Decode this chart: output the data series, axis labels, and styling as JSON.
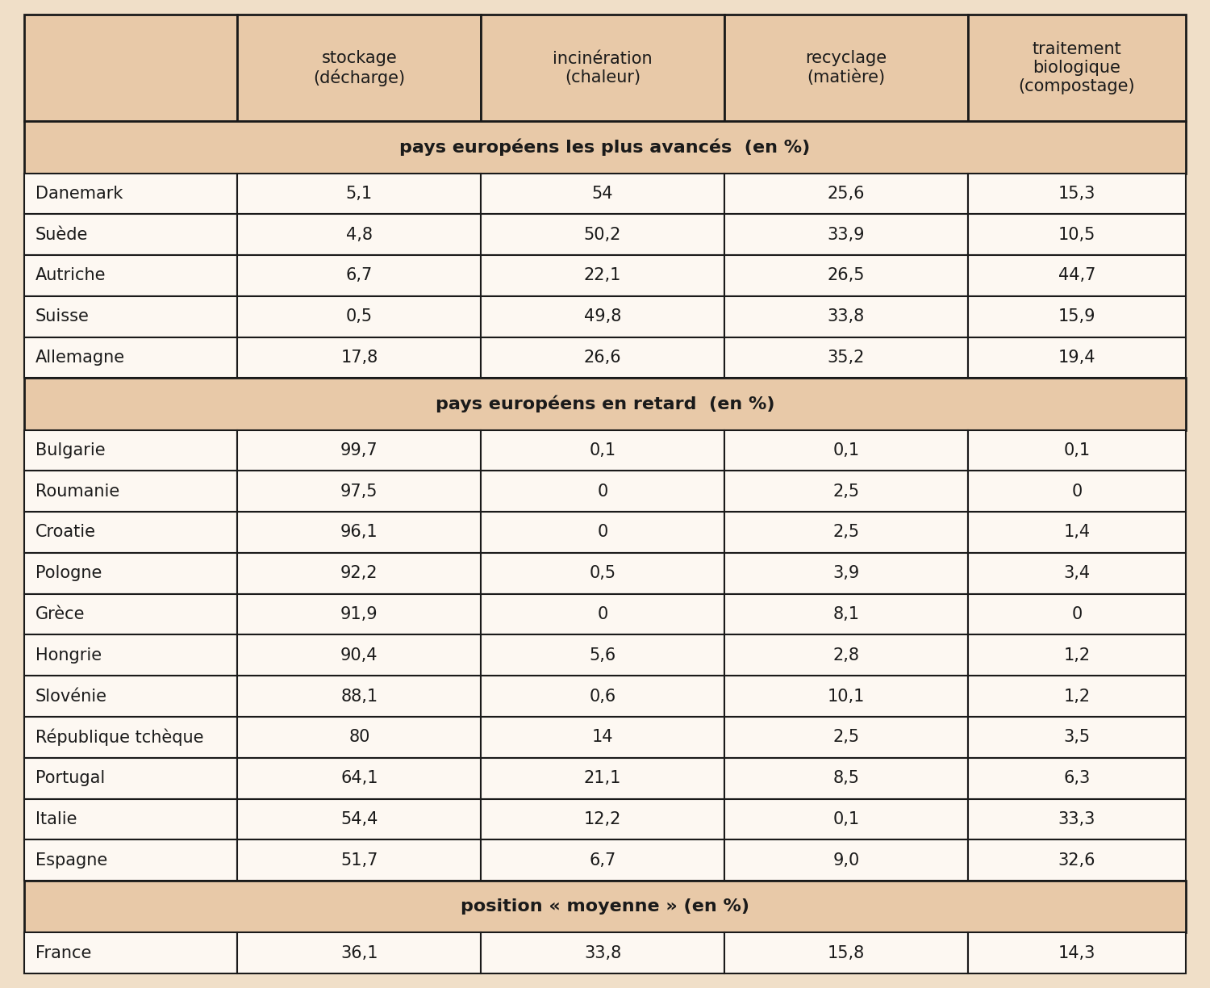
{
  "bg_color": "#f0dfc8",
  "section_bg": "#e8c9a8",
  "cell_bg": "#fdf8f2",
  "border_color": "#1a1a1a",
  "text_color": "#1a1a1a",
  "col_headers": [
    "stockage\n(décharge)",
    "incinération\n(chaleur)",
    "recyclage\n(matière)",
    "traitement\nbiologique\n(compostage)"
  ],
  "section1_title": "pays européens les plus avancés  (en %)",
  "section1_rows": [
    [
      "Danemark",
      "5,1",
      "54",
      "25,6",
      "15,3"
    ],
    [
      "Suède",
      "4,8",
      "50,2",
      "33,9",
      "10,5"
    ],
    [
      "Autriche",
      "6,7",
      "22,1",
      "26,5",
      "44,7"
    ],
    [
      "Suisse",
      "0,5",
      "49,8",
      "33,8",
      "15,9"
    ],
    [
      "Allemagne",
      "17,8",
      "26,6",
      "35,2",
      "19,4"
    ]
  ],
  "section2_title": "pays européens en retard  (en %)",
  "section2_rows": [
    [
      "Bulgarie",
      "99,7",
      "0,1",
      "0,1",
      "0,1"
    ],
    [
      "Roumanie",
      "97,5",
      "0",
      "2,5",
      "0"
    ],
    [
      "Croatie",
      "96,1",
      "0",
      "2,5",
      "1,4"
    ],
    [
      "Pologne",
      "92,2",
      "0,5",
      "3,9",
      "3,4"
    ],
    [
      "Grèce",
      "91,9",
      "0",
      "8,1",
      "0"
    ],
    [
      "Hongrie",
      "90,4",
      "5,6",
      "2,8",
      "1,2"
    ],
    [
      "Slovénie",
      "88,1",
      "0,6",
      "10,1",
      "1,2"
    ],
    [
      "République tchèque",
      "80",
      "14",
      "2,5",
      "3,5"
    ],
    [
      "Portugal",
      "64,1",
      "21,1",
      "8,5",
      "6,3"
    ],
    [
      "Italie",
      "54,4",
      "12,2",
      "0,1",
      "33,3"
    ],
    [
      "Espagne",
      "51,7",
      "6,7",
      "9,0",
      "32,6"
    ]
  ],
  "section3_title": "position « moyenne » (en %)",
  "section3_rows": [
    [
      "France",
      "36,1",
      "33,8",
      "15,8",
      "14,3"
    ]
  ],
  "font_size_header": 15,
  "font_size_data": 15,
  "font_size_section": 16
}
